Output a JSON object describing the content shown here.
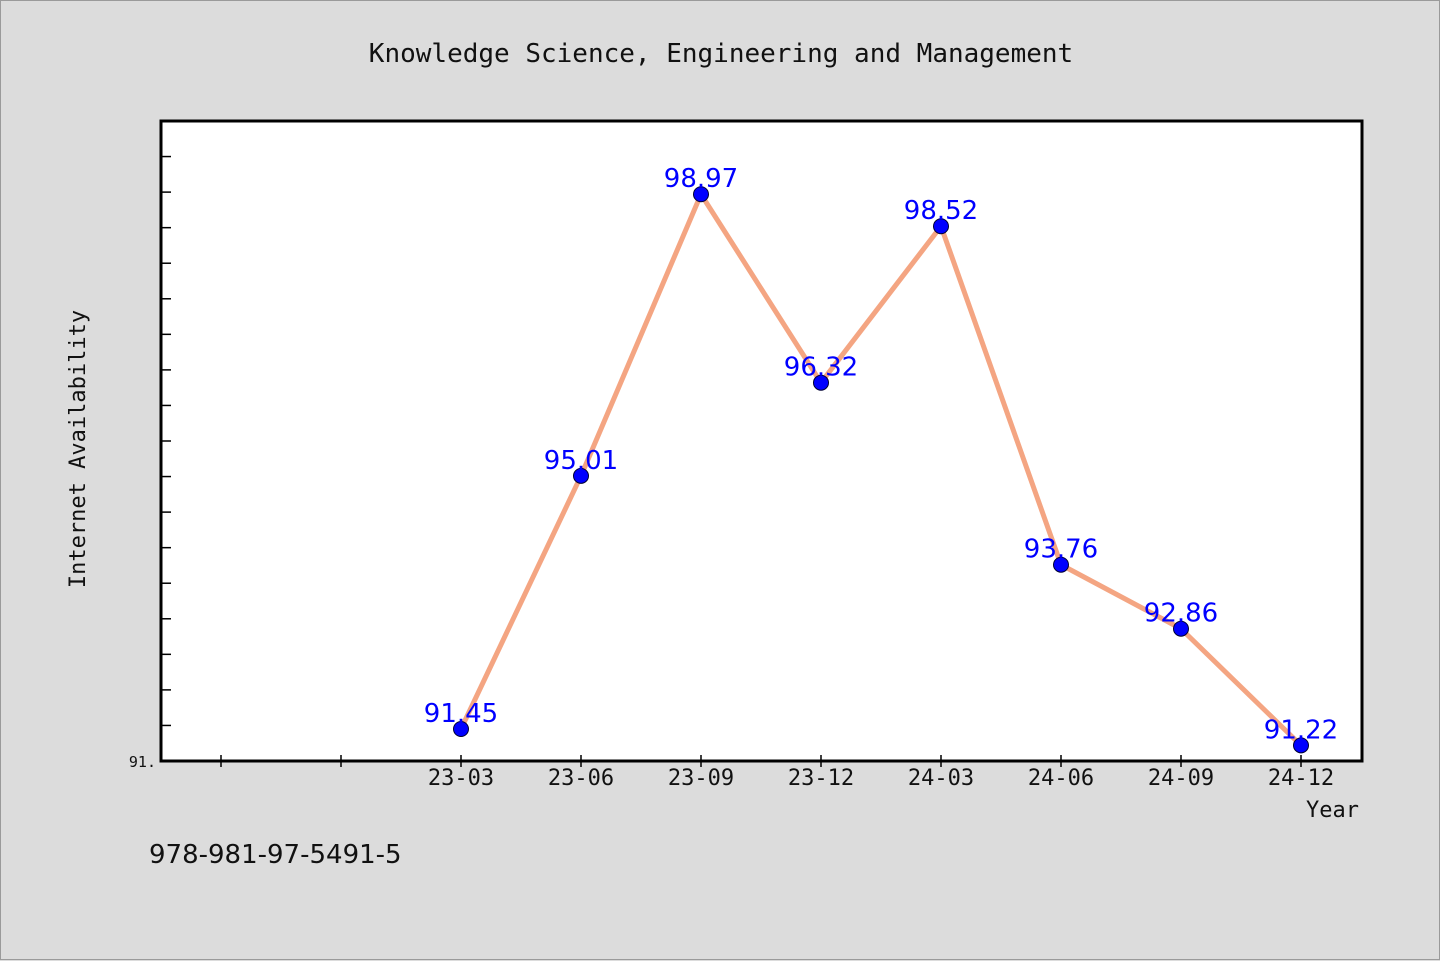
{
  "chart_data": {
    "type": "line",
    "title": "Knowledge Science, Engineering and Management",
    "xlabel": "Year",
    "ylabel": "Internet Availability",
    "categories": [
      "23-03",
      "23-06",
      "23-09",
      "23-12",
      "24-03",
      "24-06",
      "24-09",
      "24-12"
    ],
    "series": [
      {
        "values": [
          91.45,
          95.01,
          98.97,
          96.32,
          98.52,
          93.76,
          92.86,
          91.22
        ],
        "labels": [
          "91.45",
          "95.01",
          "98.97",
          "96.32",
          "98.52",
          "93.76",
          "92.86",
          "91.22"
        ]
      }
    ],
    "ylim": [
      91.0,
      100.0
    ],
    "y_min_label": "91.",
    "grid": false,
    "legend": "none",
    "line_color": "#f4a582",
    "marker_color": "#0000ff",
    "label_color": "#0000ff"
  },
  "footer_text": "978-981-97-5491-5"
}
